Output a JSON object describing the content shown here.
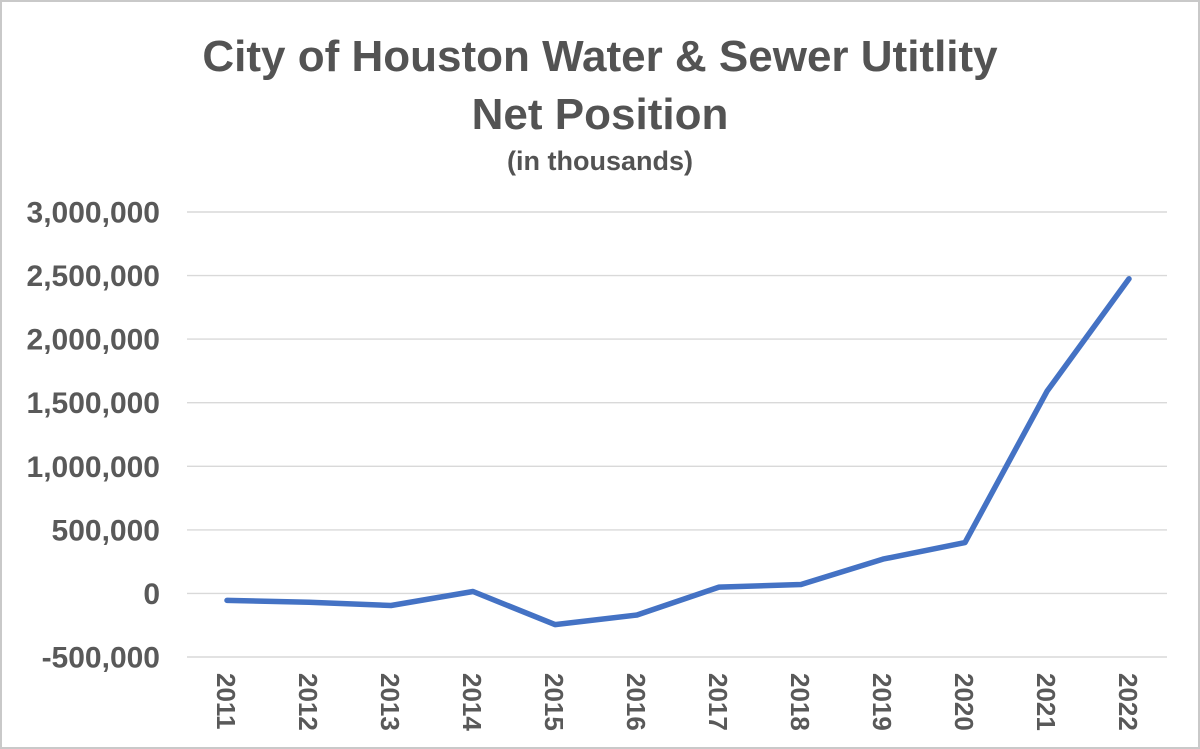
{
  "window": {
    "background": "#ffffff",
    "border_color": "#c9c9c9"
  },
  "title": {
    "line1": "City of Houston Water & Sewer Utitlity",
    "line2": "Net Position",
    "subtitle": "(in thousands)"
  },
  "chart_data": {
    "type": "line",
    "title": "City of Houston Water & Sewer Utitlity Net Position (in thousands)",
    "categories": [
      "2011",
      "2012",
      "2013",
      "2014",
      "2015",
      "2016",
      "2017",
      "2018",
      "2019",
      "2020",
      "2021",
      "2022"
    ],
    "series": [
      {
        "name": "Net Position",
        "color": "#4472C4",
        "values": [
          -55000,
          -70000,
          -95000,
          15000,
          -245000,
          -170000,
          50000,
          70000,
          270000,
          400000,
          1590000,
          2475000
        ]
      }
    ],
    "xlabel": "",
    "ylabel": "",
    "ylim": [
      -500000,
      3000000
    ],
    "ytick_interval": 500000,
    "ytick_labels": [
      "3,000,000",
      "2,500,000",
      "2,000,000",
      "1,500,000",
      "1,000,000",
      "500,000",
      "0",
      "-500,000"
    ],
    "x_tick_rotation_deg": 90,
    "grid": "horizontal",
    "gridline_color": "#d9d9d9",
    "tick_label_color": "#595959",
    "legend_position": "none",
    "markers": "none"
  }
}
